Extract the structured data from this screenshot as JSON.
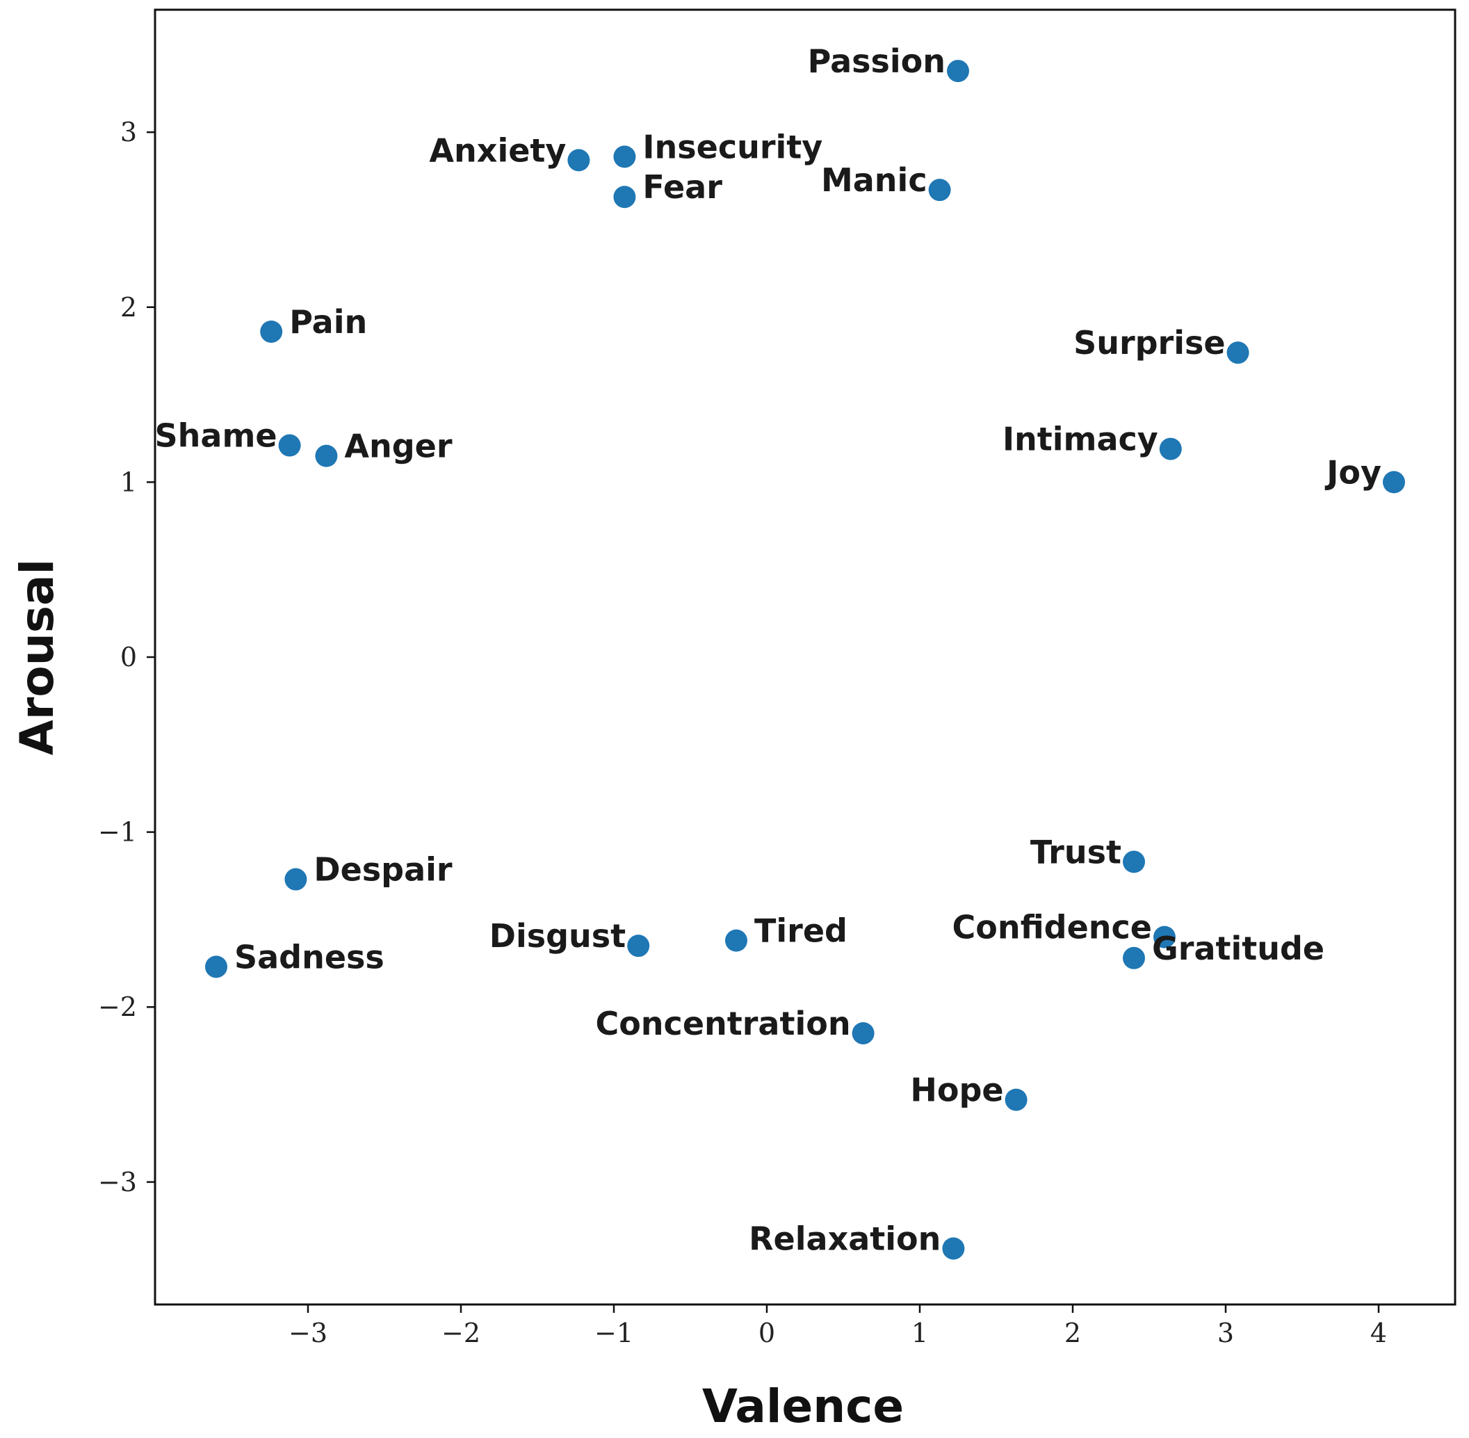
{
  "chart_data": {
    "type": "scatter",
    "title": "",
    "xlabel": "Valence",
    "ylabel": "Arousal",
    "xlim": [
      -4.0,
      4.5
    ],
    "ylim": [
      -3.7,
      3.7
    ],
    "xticks": [
      -3,
      -2,
      -1,
      0,
      1,
      2,
      3,
      4
    ],
    "yticks": [
      -3,
      -2,
      -1,
      0,
      1,
      2,
      3
    ],
    "xtick_labels": [
      "−3",
      "−2",
      "−1",
      "0",
      "1",
      "2",
      "3",
      "4"
    ],
    "ytick_labels": [
      "−3",
      "−2",
      "−1",
      "0",
      "1",
      "2",
      "3"
    ],
    "grid": false,
    "marker_color": "#1f77b4",
    "points": [
      {
        "label": "Passion",
        "x": 1.25,
        "y": 3.35,
        "anchor": "left"
      },
      {
        "label": "Anxiety",
        "x": -1.23,
        "y": 2.84,
        "anchor": "left"
      },
      {
        "label": "Insecurity",
        "x": -0.93,
        "y": 2.86,
        "anchor": "right"
      },
      {
        "label": "Fear",
        "x": -0.93,
        "y": 2.63,
        "anchor": "right"
      },
      {
        "label": "Manic",
        "x": 1.13,
        "y": 2.67,
        "anchor": "left"
      },
      {
        "label": "Pain",
        "x": -3.24,
        "y": 1.86,
        "anchor": "right"
      },
      {
        "label": "Surprise",
        "x": 3.08,
        "y": 1.74,
        "anchor": "left"
      },
      {
        "label": "Shame",
        "x": -3.12,
        "y": 1.21,
        "anchor": "left"
      },
      {
        "label": "Anger",
        "x": -2.88,
        "y": 1.15,
        "anchor": "right"
      },
      {
        "label": "Intimacy",
        "x": 2.64,
        "y": 1.19,
        "anchor": "left"
      },
      {
        "label": "Joy",
        "x": 4.1,
        "y": 1.0,
        "anchor": "left"
      },
      {
        "label": "Trust",
        "x": 2.4,
        "y": -1.17,
        "anchor": "left"
      },
      {
        "label": "Despair",
        "x": -3.08,
        "y": -1.27,
        "anchor": "right"
      },
      {
        "label": "Confidence",
        "x": 2.6,
        "y": -1.6,
        "anchor": "left"
      },
      {
        "label": "Gratitude",
        "x": 2.4,
        "y": -1.72,
        "anchor": "right"
      },
      {
        "label": "Disgust",
        "x": -0.84,
        "y": -1.65,
        "anchor": "left"
      },
      {
        "label": "Tired",
        "x": -0.2,
        "y": -1.62,
        "anchor": "right"
      },
      {
        "label": "Sadness",
        "x": -3.6,
        "y": -1.77,
        "anchor": "right"
      },
      {
        "label": "Concentration",
        "x": 0.63,
        "y": -2.15,
        "anchor": "left"
      },
      {
        "label": "Hope",
        "x": 1.63,
        "y": -2.53,
        "anchor": "left"
      },
      {
        "label": "Relaxation",
        "x": 1.22,
        "y": -3.38,
        "anchor": "left"
      }
    ]
  }
}
